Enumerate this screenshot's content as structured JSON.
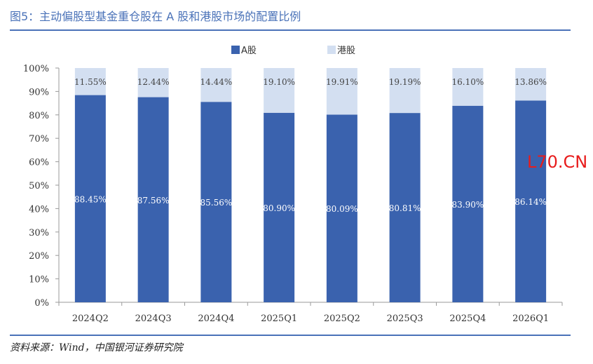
{
  "title": "图5：主动偏股型基金重仓股在 A 股和港股市场的配置比例",
  "source": "资料来源：Wind，中国银河证券研究院",
  "watermark": "L70.CN",
  "colors": {
    "a_share": "#3a62ae",
    "hk_share": "#d3dff1",
    "accent": "#4a72b8"
  },
  "chart_data": {
    "type": "bar",
    "stacked": true,
    "categories": [
      "2024Q2",
      "2024Q3",
      "2024Q4",
      "2025Q1",
      "2025Q2",
      "2025Q3",
      "2025Q4",
      "2026Q1"
    ],
    "series": [
      {
        "name": "A股",
        "values": [
          88.45,
          87.56,
          85.56,
          80.9,
          80.09,
          80.81,
          83.9,
          86.14
        ],
        "labels": [
          "88.45%",
          "87.56%",
          "85.56%",
          "80.90%",
          "80.09%",
          "80.81%",
          "83.90%",
          "86.14%"
        ]
      },
      {
        "name": "港股",
        "values": [
          11.55,
          12.44,
          14.44,
          19.1,
          19.91,
          19.19,
          16.1,
          13.86
        ],
        "labels": [
          "11.55%",
          "12.44%",
          "14.44%",
          "19.10%",
          "19.91%",
          "19.19%",
          "16.10%",
          "13.86%"
        ]
      }
    ],
    "yticks": [
      "0%",
      "10%",
      "20%",
      "30%",
      "40%",
      "50%",
      "60%",
      "70%",
      "80%",
      "90%",
      "100%"
    ],
    "ylim": [
      0,
      100
    ],
    "legend_position": "top-center",
    "grid": false
  }
}
